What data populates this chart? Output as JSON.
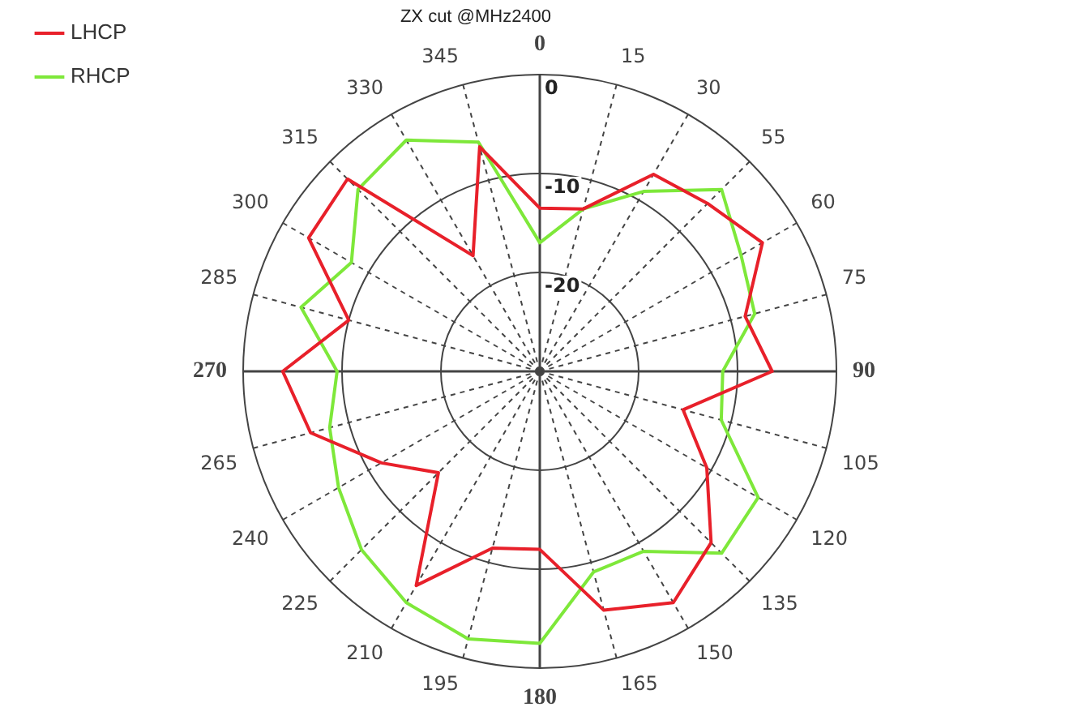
{
  "chart_data": {
    "type": "radar",
    "title": "ZX cut @MHz2400",
    "categories": [
      "0",
      "15",
      "30",
      "55",
      "60",
      "75",
      "90",
      "105",
      "120",
      "135",
      "150",
      "165",
      "180",
      "195",
      "210",
      "225",
      "240",
      "265",
      "270",
      "285",
      "300",
      "315",
      "330",
      "345"
    ],
    "series": [
      {
        "name": "LHCP",
        "color": "#e8202a",
        "values": [
          -13.5,
          -13,
          -7,
          -6,
          -4,
          -8.5,
          -6.5,
          -15,
          -10.5,
          -5.5,
          -3,
          -5,
          -12,
          -11.5,
          -5,
          -15.5,
          -11.5,
          -6,
          -4,
          -10,
          -3,
          -2.5,
          -16.5,
          -6.5
        ]
      },
      {
        "name": "RHCP",
        "color": "#7ee83a",
        "values": [
          -17,
          -13,
          -9,
          -4,
          -6.5,
          -7.5,
          -11.5,
          -11,
          -4.5,
          -4,
          -9,
          -9,
          -2.5,
          -2,
          -3,
          -4.5,
          -6.5,
          -8,
          -9.5,
          -5,
          -8,
          -4,
          -3,
          -6
        ]
      }
    ],
    "ylim": [
      -30,
      0
    ],
    "yticks": [
      -20,
      -10,
      0
    ],
    "grid": true,
    "legend": "top left",
    "marker": "none",
    "line_style": "solid"
  }
}
